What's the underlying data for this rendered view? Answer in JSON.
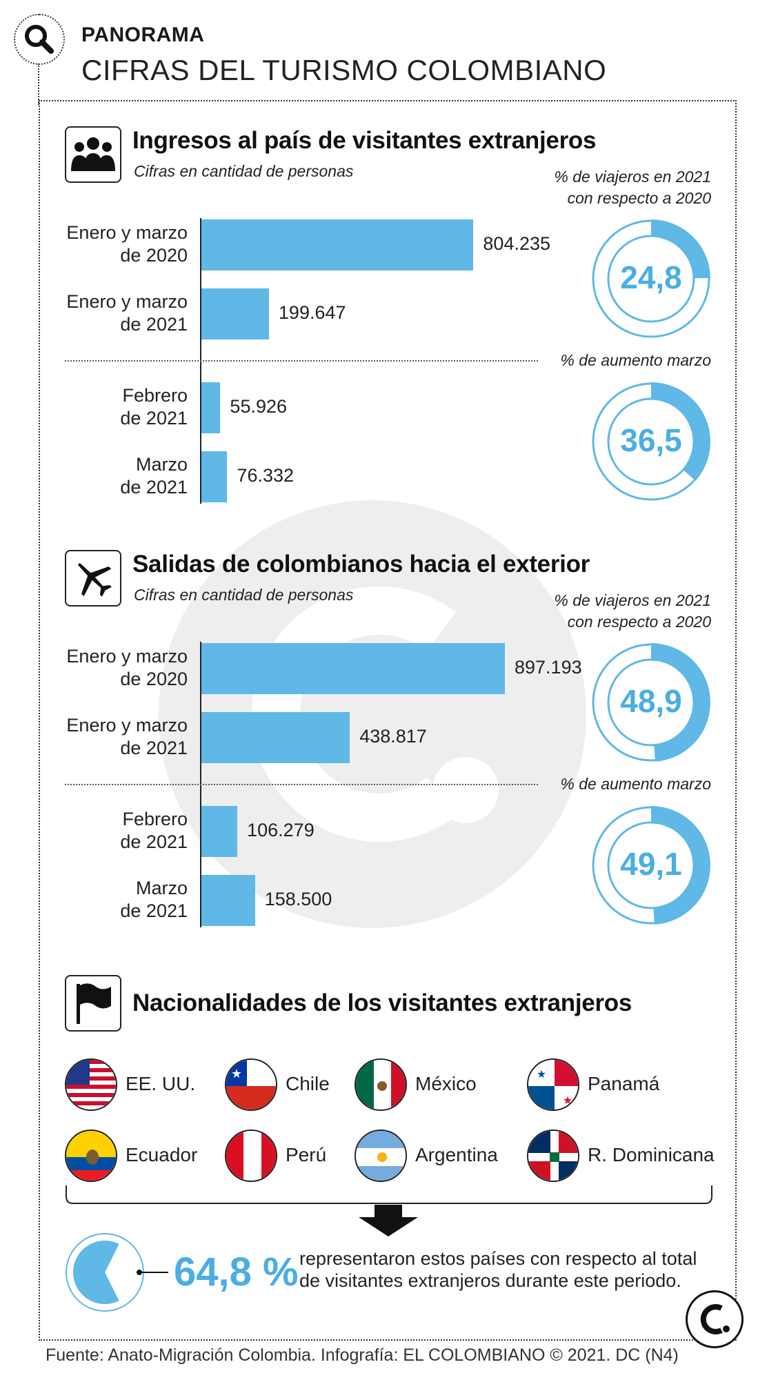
{
  "header": {
    "kicker": "PANORAMA",
    "title": "CIFRAS DEL TURISMO COLOMBIANO"
  },
  "colors": {
    "bar": "#5fb8e6",
    "accent": "#4aaee3",
    "ring": "#5fb8e6",
    "ink": "#1a1a1a"
  },
  "sections": {
    "arrivals": {
      "title": "Ingresos al país de visitantes extranjeros",
      "subtitle": "Cifras en cantidad de personas",
      "icon": "people-icon",
      "pct_label_1": "% de viajeros en 2021",
      "pct_label_2": "con respecto a 2020",
      "pct_label_3": "% de aumento marzo",
      "rows": [
        {
          "label_1": "Enero y marzo",
          "label_2": "de 2020",
          "value_text": "804.235"
        },
        {
          "label_1": "Enero y marzo",
          "label_2": "de 2021",
          "value_text": "199.647"
        },
        {
          "label_1": "Febrero",
          "label_2": "de 2021",
          "value_text": "55.926"
        },
        {
          "label_1": "Marzo",
          "label_2": "de 2021",
          "value_text": "76.332"
        }
      ],
      "donut_1": "24,8",
      "donut_2": "36,5"
    },
    "departures": {
      "title": "Salidas de colombianos hacia el exterior",
      "subtitle": "Cifras en cantidad de personas",
      "icon": "airplane-icon",
      "pct_label_1": "% de viajeros en 2021",
      "pct_label_2": "con respecto a 2020",
      "pct_label_3": "% de aumento marzo",
      "rows": [
        {
          "label_1": "Enero y marzo",
          "label_2": "de 2020",
          "value_text": "897.193"
        },
        {
          "label_1": "Enero y marzo",
          "label_2": "de 2021",
          "value_text": "438.817"
        },
        {
          "label_1": "Febrero",
          "label_2": "de 2021",
          "value_text": "106.279"
        },
        {
          "label_1": "Marzo",
          "label_2": "de 2021",
          "value_text": "158.500"
        }
      ],
      "donut_1": "48,9",
      "donut_2": "49,1"
    },
    "nationalities": {
      "title": "Nacionalidades de los visitantes extranjeros",
      "icon": "flag-icon",
      "countries": [
        "EE. UU.",
        "Chile",
        "México",
        "Panamá",
        "Ecuador",
        "Perú",
        "Argentina",
        "R. Dominicana"
      ],
      "share": "64,8 %",
      "summary_1": "representaron estos países con respecto al total",
      "summary_2": "de visitantes extranjeros durante este periodo."
    }
  },
  "footer": "Fuente: Anato-Migración Colombia. Infografía: EL COLOMBIANO © 2021. DC (N4)",
  "chart_data": [
    {
      "type": "bar",
      "title": "Ingresos al país de visitantes extranjeros",
      "subtitle": "Cifras en cantidad de personas",
      "categories": [
        "Enero y marzo de 2020",
        "Enero y marzo de 2021",
        "Febrero de 2021",
        "Marzo de 2021"
      ],
      "values": [
        804235,
        199647,
        55926,
        76332
      ],
      "orientation": "horizontal",
      "donuts": [
        {
          "label": "% de viajeros en 2021 con respecto a 2020",
          "value": 24.8
        },
        {
          "label": "% de aumento marzo",
          "value": 36.5
        }
      ]
    },
    {
      "type": "bar",
      "title": "Salidas de colombianos hacia el exterior",
      "subtitle": "Cifras en cantidad de personas",
      "categories": [
        "Enero y marzo de 2020",
        "Enero y marzo de 2021",
        "Febrero de 2021",
        "Marzo de 2021"
      ],
      "values": [
        897193,
        438817,
        106279,
        158500
      ],
      "orientation": "horizontal",
      "donuts": [
        {
          "label": "% de viajeros en 2021 con respecto a 2020",
          "value": 48.9
        },
        {
          "label": "% de aumento marzo",
          "value": 49.1
        }
      ]
    },
    {
      "type": "pie",
      "title": "Nacionalidades de los visitantes extranjeros",
      "values": [
        64.8
      ]
    }
  ]
}
